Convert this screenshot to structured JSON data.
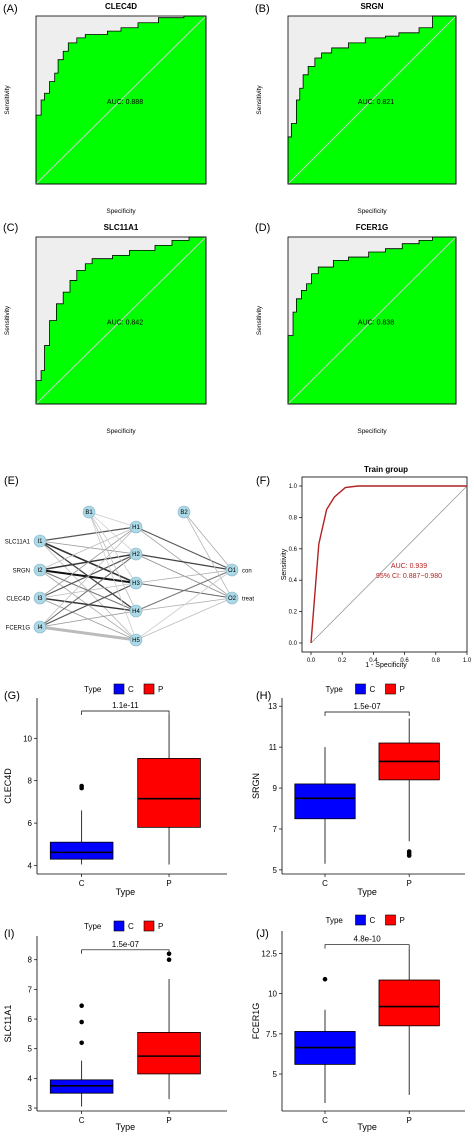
{
  "colors": {
    "roc_fill": "#00ff00",
    "roc_bg": "#eeeeee",
    "train_curve": "#b22222",
    "box_c": "#0000ff",
    "box_p": "#ff0000",
    "node": "#add8e6"
  },
  "chart_data": [
    {
      "id": "A",
      "panel_label": "(A)",
      "type": "area",
      "title": "CLEC4D",
      "xlabel": "Specificity",
      "ylabel": "Sensitivity",
      "annotation": "AUC: 0.888",
      "curve": [
        [
          0,
          0
        ],
        [
          0,
          0.41
        ],
        [
          0.03,
          0.41
        ],
        [
          0.03,
          0.5
        ],
        [
          0.05,
          0.5
        ],
        [
          0.05,
          0.54
        ],
        [
          0.08,
          0.54
        ],
        [
          0.08,
          0.61
        ],
        [
          0.11,
          0.61
        ],
        [
          0.11,
          0.66
        ],
        [
          0.13,
          0.66
        ],
        [
          0.13,
          0.74
        ],
        [
          0.16,
          0.74
        ],
        [
          0.16,
          0.79
        ],
        [
          0.19,
          0.79
        ],
        [
          0.19,
          0.84
        ],
        [
          0.24,
          0.84
        ],
        [
          0.24,
          0.87
        ],
        [
          0.29,
          0.87
        ],
        [
          0.29,
          0.89
        ],
        [
          0.42,
          0.89
        ],
        [
          0.42,
          0.91
        ],
        [
          0.5,
          0.91
        ],
        [
          0.5,
          0.93
        ],
        [
          0.6,
          0.93
        ],
        [
          0.6,
          0.96
        ],
        [
          0.72,
          0.96
        ],
        [
          0.72,
          0.99
        ],
        [
          0.87,
          0.99
        ],
        [
          0.87,
          1
        ],
        [
          1,
          1
        ]
      ]
    },
    {
      "id": "B",
      "panel_label": "(B)",
      "type": "area",
      "title": "SRGN",
      "xlabel": "Specificity",
      "ylabel": "Sensitivity",
      "annotation": "AUC: 0.821",
      "curve": [
        [
          0,
          0
        ],
        [
          0,
          0.28
        ],
        [
          0.02,
          0.28
        ],
        [
          0.02,
          0.36
        ],
        [
          0.05,
          0.36
        ],
        [
          0.05,
          0.5
        ],
        [
          0.07,
          0.5
        ],
        [
          0.07,
          0.57
        ],
        [
          0.09,
          0.57
        ],
        [
          0.09,
          0.65
        ],
        [
          0.12,
          0.65
        ],
        [
          0.12,
          0.7
        ],
        [
          0.16,
          0.7
        ],
        [
          0.16,
          0.75
        ],
        [
          0.2,
          0.75
        ],
        [
          0.2,
          0.78
        ],
        [
          0.26,
          0.78
        ],
        [
          0.26,
          0.81
        ],
        [
          0.36,
          0.81
        ],
        [
          0.36,
          0.84
        ],
        [
          0.46,
          0.84
        ],
        [
          0.46,
          0.87
        ],
        [
          0.58,
          0.87
        ],
        [
          0.58,
          0.88
        ],
        [
          0.66,
          0.88
        ],
        [
          0.66,
          0.9
        ],
        [
          0.78,
          0.9
        ],
        [
          0.78,
          0.93
        ],
        [
          0.86,
          0.93
        ],
        [
          0.86,
          1
        ],
        [
          1,
          1
        ]
      ]
    },
    {
      "id": "C",
      "panel_label": "(C)",
      "type": "area",
      "title": "SLC11A1",
      "xlabel": "Specificity",
      "ylabel": "Sensitivity",
      "annotation": "AUC: 0.842",
      "curve": [
        [
          0,
          0
        ],
        [
          0,
          0.14
        ],
        [
          0.03,
          0.14
        ],
        [
          0.03,
          0.2
        ],
        [
          0.05,
          0.2
        ],
        [
          0.05,
          0.35
        ],
        [
          0.08,
          0.35
        ],
        [
          0.08,
          0.5
        ],
        [
          0.12,
          0.5
        ],
        [
          0.12,
          0.6
        ],
        [
          0.16,
          0.6
        ],
        [
          0.16,
          0.67
        ],
        [
          0.2,
          0.67
        ],
        [
          0.2,
          0.74
        ],
        [
          0.24,
          0.74
        ],
        [
          0.24,
          0.78
        ],
        [
          0.24,
          0.8
        ],
        [
          0.29,
          0.8
        ],
        [
          0.29,
          0.84
        ],
        [
          0.33,
          0.84
        ],
        [
          0.33,
          0.87
        ],
        [
          0.45,
          0.87
        ],
        [
          0.45,
          0.89
        ],
        [
          0.55,
          0.89
        ],
        [
          0.55,
          0.92
        ],
        [
          0.7,
          0.92
        ],
        [
          0.7,
          0.95
        ],
        [
          0.8,
          0.95
        ],
        [
          0.8,
          0.98
        ],
        [
          0.9,
          0.98
        ],
        [
          0.9,
          1
        ],
        [
          1,
          1
        ]
      ]
    },
    {
      "id": "D",
      "panel_label": "(D)",
      "type": "area",
      "title": "FCER1G",
      "xlabel": "Specificity",
      "ylabel": "Sensitivity",
      "annotation": "AUC: 0.838",
      "curve": [
        [
          0,
          0
        ],
        [
          0,
          0.41
        ],
        [
          0.03,
          0.41
        ],
        [
          0.03,
          0.55
        ],
        [
          0.05,
          0.55
        ],
        [
          0.05,
          0.63
        ],
        [
          0.08,
          0.63
        ],
        [
          0.08,
          0.68
        ],
        [
          0.11,
          0.68
        ],
        [
          0.11,
          0.72
        ],
        [
          0.14,
          0.72
        ],
        [
          0.14,
          0.78
        ],
        [
          0.18,
          0.78
        ],
        [
          0.18,
          0.82
        ],
        [
          0.27,
          0.82
        ],
        [
          0.27,
          0.86
        ],
        [
          0.36,
          0.86
        ],
        [
          0.36,
          0.88
        ],
        [
          0.48,
          0.88
        ],
        [
          0.48,
          0.91
        ],
        [
          0.58,
          0.91
        ],
        [
          0.58,
          0.93
        ],
        [
          0.68,
          0.93
        ],
        [
          0.68,
          0.96
        ],
        [
          0.78,
          0.96
        ],
        [
          0.78,
          0.98
        ],
        [
          0.86,
          0.98
        ],
        [
          0.86,
          1
        ],
        [
          1,
          1
        ]
      ]
    },
    {
      "id": "F",
      "panel_label": "(F)",
      "type": "line",
      "title": "Train group",
      "xlabel": "1 - Specificity",
      "ylabel": "Sensitivity",
      "annotation_lines": [
        "AUC: 0.939",
        "95% CI: 0.887−0.980"
      ],
      "xlim": [
        0,
        1
      ],
      "ylim": [
        0,
        1
      ],
      "xticks": [
        "0.0",
        "0.2",
        "0.4",
        "0.6",
        "0.8",
        "1.0"
      ],
      "yticks": [
        "0.0",
        "0.2",
        "0.4",
        "0.6",
        "0.8",
        "1.0"
      ],
      "x": [
        0,
        0.05,
        0.1,
        0.15,
        0.22,
        0.3,
        0.5,
        1.0
      ],
      "y": [
        0,
        0.63,
        0.85,
        0.93,
        0.99,
        1.0,
        1.0,
        1.0
      ]
    },
    {
      "id": "G",
      "panel_label": "(G)",
      "type": "box",
      "legend_title": "Type",
      "categories": [
        "C",
        "P"
      ],
      "xlabel": "Type",
      "ylabel": "CLEC4D",
      "pvalue": "1.1e-11",
      "ylim": [
        3.6,
        11.9
      ],
      "yticks": [
        4,
        6,
        8,
        10
      ],
      "boxes": [
        {
          "name": "C",
          "min": 4.05,
          "q1": 4.3,
          "median": 4.62,
          "q3": 5.1,
          "max": 6.6,
          "outliers": [
            7.65,
            7.75
          ]
        },
        {
          "name": "P",
          "min": 4.05,
          "q1": 5.8,
          "median": 7.15,
          "q3": 9.05,
          "max": 11.1,
          "outliers": []
        }
      ]
    },
    {
      "id": "H",
      "panel_label": "(H)",
      "type": "box",
      "legend_title": "Type",
      "categories": [
        "C",
        "P"
      ],
      "xlabel": "Type",
      "ylabel": "SRGN",
      "pvalue": "1.5e-07",
      "ylim": [
        4.8,
        13.4
      ],
      "yticks": [
        5,
        7,
        9,
        11,
        13
      ],
      "boxes": [
        {
          "name": "C",
          "min": 5.3,
          "q1": 7.5,
          "median": 8.5,
          "q3": 9.2,
          "max": 11.0,
          "outliers": []
        },
        {
          "name": "P",
          "min": 6.4,
          "q1": 9.4,
          "median": 10.3,
          "q3": 11.2,
          "max": 12.4,
          "outliers": [
            5.9,
            5.8,
            5.7
          ]
        }
      ]
    },
    {
      "id": "I",
      "panel_label": "(I)",
      "type": "box",
      "legend_title": "Type",
      "categories": [
        "C",
        "P"
      ],
      "xlabel": "Type",
      "ylabel": "SLC11A1",
      "pvalue": "1.5e-07",
      "ylim": [
        2.9,
        8.8
      ],
      "yticks": [
        3,
        4,
        5,
        6,
        7,
        8
      ],
      "boxes": [
        {
          "name": "C",
          "min": 3.05,
          "q1": 3.5,
          "median": 3.75,
          "q3": 3.95,
          "max": 4.6,
          "outliers": [
            5.2,
            5.9,
            6.45
          ]
        },
        {
          "name": "P",
          "min": 3.3,
          "q1": 4.15,
          "median": 4.75,
          "q3": 5.55,
          "max": 7.35,
          "outliers": [
            8.0,
            8.2
          ]
        }
      ]
    },
    {
      "id": "J",
      "panel_label": "(J)",
      "type": "box",
      "legend_title": "Type",
      "categories": [
        "C",
        "P"
      ],
      "xlabel": "Type",
      "ylabel": "FCER1G",
      "pvalue": "4.8e-10",
      "ylim": [
        2.7,
        13.9
      ],
      "yticks": [
        5.0,
        7.5,
        10.0,
        12.5
      ],
      "ytick_labels": [
        "5.0",
        "7.5",
        "10.0",
        "12.5"
      ],
      "boxes": [
        {
          "name": "C",
          "min": 3.2,
          "q1": 5.6,
          "median": 6.65,
          "q3": 7.65,
          "max": 9.0,
          "outliers": [
            10.9
          ]
        },
        {
          "name": "P",
          "min": 3.7,
          "q1": 8.0,
          "median": 9.2,
          "q3": 10.85,
          "max": 12.8,
          "outliers": []
        }
      ]
    }
  ],
  "network": {
    "panel_label": "(E)",
    "nodes": [
      {
        "id": "I1",
        "label": "I1",
        "side_label": "SLC11A1"
      },
      {
        "id": "I2",
        "label": "I2",
        "side_label": "SRGN"
      },
      {
        "id": "I3",
        "label": "I3",
        "side_label": "CLEC4D"
      },
      {
        "id": "I4",
        "label": "I4",
        "side_label": "FCER1G"
      },
      {
        "id": "B1",
        "label": "B1"
      },
      {
        "id": "H1",
        "label": "H1"
      },
      {
        "id": "H2",
        "label": "H2"
      },
      {
        "id": "H3",
        "label": "H3"
      },
      {
        "id": "H4",
        "label": "H4"
      },
      {
        "id": "H5",
        "label": "H5"
      },
      {
        "id": "B2",
        "label": "B2"
      },
      {
        "id": "O1",
        "label": "O1",
        "side_label": "con"
      },
      {
        "id": "O2",
        "label": "O2",
        "side_label": "treat"
      }
    ],
    "edges": [
      {
        "from": "I1",
        "to": "H1",
        "w": 1.2,
        "gray": "#555"
      },
      {
        "from": "I1",
        "to": "H2",
        "w": 0.8,
        "gray": "#999"
      },
      {
        "from": "I1",
        "to": "H3",
        "w": 1.6,
        "gray": "#333"
      },
      {
        "from": "I1",
        "to": "H4",
        "w": 1.3,
        "gray": "#444"
      },
      {
        "from": "I1",
        "to": "H5",
        "w": 0.8,
        "gray": "#bbb"
      },
      {
        "from": "I2",
        "to": "H1",
        "w": 0.8,
        "gray": "#bbb"
      },
      {
        "from": "I2",
        "to": "H2",
        "w": 1.4,
        "gray": "#333"
      },
      {
        "from": "I2",
        "to": "H3",
        "w": 2.0,
        "gray": "#111"
      },
      {
        "from": "I2",
        "to": "H4",
        "w": 1.0,
        "gray": "#777"
      },
      {
        "from": "I2",
        "to": "H5",
        "w": 0.8,
        "gray": "#aaa"
      },
      {
        "from": "I3",
        "to": "H1",
        "w": 0.8,
        "gray": "#999"
      },
      {
        "from": "I3",
        "to": "H2",
        "w": 1.2,
        "gray": "#555"
      },
      {
        "from": "I3",
        "to": "H3",
        "w": 0.8,
        "gray": "#bbb"
      },
      {
        "from": "I3",
        "to": "H4",
        "w": 1.4,
        "gray": "#333"
      },
      {
        "from": "I3",
        "to": "H5",
        "w": 0.8,
        "gray": "#999"
      },
      {
        "from": "I4",
        "to": "H1",
        "w": 0.8,
        "gray": "#bbb"
      },
      {
        "from": "I4",
        "to": "H2",
        "w": 1.0,
        "gray": "#666"
      },
      {
        "from": "I4",
        "to": "H3",
        "w": 1.2,
        "gray": "#555"
      },
      {
        "from": "I4",
        "to": "H4",
        "w": 0.8,
        "gray": "#999"
      },
      {
        "from": "I4",
        "to": "H5",
        "w": 3.0,
        "gray": "#bbb"
      },
      {
        "from": "B1",
        "to": "H1",
        "w": 0.8,
        "gray": "#ccc"
      },
      {
        "from": "B1",
        "to": "H2",
        "w": 0.8,
        "gray": "#ccc"
      },
      {
        "from": "B1",
        "to": "H3",
        "w": 0.8,
        "gray": "#ccc"
      },
      {
        "from": "B1",
        "to": "H4",
        "w": 0.8,
        "gray": "#bbb"
      },
      {
        "from": "B1",
        "to": "H5",
        "w": 0.8,
        "gray": "#ccc"
      },
      {
        "from": "H1",
        "to": "O1",
        "w": 1.0,
        "gray": "#555"
      },
      {
        "from": "H1",
        "to": "O2",
        "w": 0.8,
        "gray": "#aaa"
      },
      {
        "from": "H2",
        "to": "O1",
        "w": 1.3,
        "gray": "#444"
      },
      {
        "from": "H2",
        "to": "O2",
        "w": 0.8,
        "gray": "#888"
      },
      {
        "from": "H3",
        "to": "O1",
        "w": 0.8,
        "gray": "#aaa"
      },
      {
        "from": "H3",
        "to": "O2",
        "w": 1.0,
        "gray": "#666"
      },
      {
        "from": "H4",
        "to": "O1",
        "w": 1.0,
        "gray": "#777"
      },
      {
        "from": "H4",
        "to": "O2",
        "w": 0.8,
        "gray": "#aaa"
      },
      {
        "from": "H5",
        "to": "O1",
        "w": 0.8,
        "gray": "#ccc"
      },
      {
        "from": "H5",
        "to": "O2",
        "w": 0.8,
        "gray": "#bbb"
      },
      {
        "from": "B2",
        "to": "O1",
        "w": 0.8,
        "gray": "#aaa"
      },
      {
        "from": "B2",
        "to": "O2",
        "w": 0.8,
        "gray": "#bbb"
      }
    ]
  }
}
